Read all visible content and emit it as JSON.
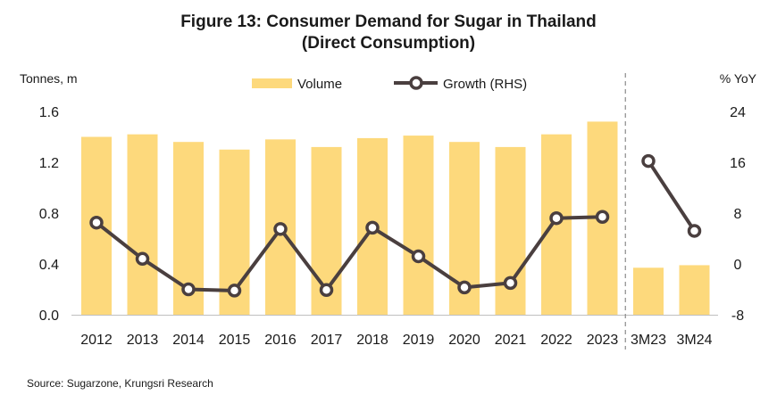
{
  "chart_data": {
    "type": "bar",
    "title": "Figure 13: Consumer Demand for Sugar in Thailand",
    "subtitle": "(Direct Consumption)",
    "categories": [
      "2012",
      "2013",
      "2014",
      "2015",
      "2016",
      "2017",
      "2018",
      "2019",
      "2020",
      "2021",
      "2022",
      "2023",
      "3M23",
      "3M24"
    ],
    "series": [
      {
        "name": "Volume",
        "type": "bar",
        "axis": "left",
        "color": "#FDD97C",
        "values": [
          1.4,
          1.42,
          1.36,
          1.3,
          1.38,
          1.32,
          1.39,
          1.41,
          1.36,
          1.32,
          1.42,
          1.52,
          0.37,
          0.39
        ]
      },
      {
        "name": "Growth (RHS)",
        "type": "line",
        "axis": "right",
        "color": "#4A3F3F",
        "values": [
          6.5,
          0.8,
          -4.0,
          -4.2,
          5.5,
          -4.1,
          5.7,
          1.2,
          -3.7,
          -3.0,
          7.2,
          7.4,
          16.2,
          5.2
        ]
      }
    ],
    "left_axis": {
      "label": "Tonnes, m",
      "ylim": [
        0,
        1.6
      ],
      "ticks": [
        "0.0",
        "0.4",
        "0.8",
        "1.2",
        "1.6"
      ]
    },
    "right_axis": {
      "label": "% YoY",
      "ylim": [
        -8,
        24
      ],
      "ticks": [
        "-8",
        "0",
        "8",
        "16",
        "24"
      ]
    },
    "legend_position": "top-center",
    "grid": false,
    "separator_after": "2023",
    "source": "Source: Sugarzone, Krungsri Research"
  }
}
